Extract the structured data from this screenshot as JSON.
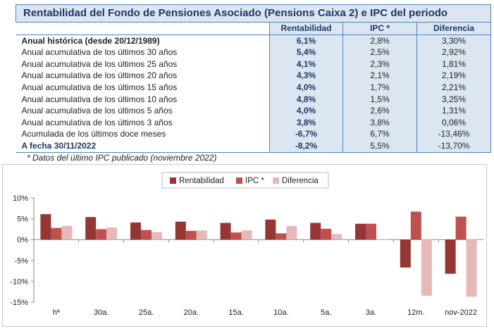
{
  "table": {
    "title": "Rentabilidad del Fondo de Pensiones Asociado (Pensions Caixa 2) e IPC del periodo",
    "columns": [
      "Rentabilidad",
      "IPC *",
      "Diferencia"
    ],
    "rows": [
      {
        "label": "Anual histórica (desde 20/12/1989)",
        "rent": "6,1%",
        "ipc": "2,8%",
        "dif": "3,30%"
      },
      {
        "label": "Anual acumulativa de los últimos 30 años",
        "rent": "5,4%",
        "ipc": "2,5%",
        "dif": "2,92%"
      },
      {
        "label": "Anual acumulativa de los últimos 25 años",
        "rent": "4,1%",
        "ipc": "2,3%",
        "dif": "1,81%"
      },
      {
        "label": "Anual acumulativa de los últimos 20 años",
        "rent": "4,3%",
        "ipc": "2,1%",
        "dif": "2,19%"
      },
      {
        "label": "Anual acumulativa de los últimos 15 años",
        "rent": "4,0%",
        "ipc": "1,7%",
        "dif": "2,21%"
      },
      {
        "label": "Anual acumulativa de los últimos 10 años",
        "rent": "4,8%",
        "ipc": "1,5%",
        "dif": "3,25%"
      },
      {
        "label": "Anual acumulativa de los últimos 5 años",
        "rent": "4,0%",
        "ipc": "2,6%",
        "dif": "1,31%"
      },
      {
        "label": "Anual acumulativa de los últimos 3 años",
        "rent": "3,8%",
        "ipc": "3,8%",
        "dif": "0,06%"
      },
      {
        "label": "Acumulada de los últimos doce meses",
        "rent": "-6,7%",
        "ipc": "6,7%",
        "dif": "-13,46%"
      },
      {
        "label": "A fecha 30/11/2022",
        "rent": "-8,2%",
        "ipc": "5,5%",
        "dif": "-13,70%"
      }
    ],
    "footnote": "* Datos del último IPC publicado (noviembre 2022)"
  },
  "chart_data": {
    "type": "bar",
    "categories": [
      "hª",
      "30a.",
      "25a.",
      "20a.",
      "15a.",
      "10a.",
      "5a.",
      "3a.",
      "12m.",
      "nov-2022"
    ],
    "series": [
      {
        "name": "Rentabilidad",
        "color": "#963634",
        "values": [
          6.1,
          5.4,
          4.1,
          4.3,
          4.0,
          4.8,
          4.0,
          3.8,
          -6.7,
          -8.2
        ]
      },
      {
        "name": "IPC *",
        "color": "#c0504d",
        "values": [
          2.8,
          2.5,
          2.3,
          2.1,
          1.7,
          1.5,
          2.6,
          3.8,
          6.7,
          5.5
        ]
      },
      {
        "name": "Diferencia",
        "color": "#e6b9b8",
        "values": [
          3.3,
          2.92,
          1.81,
          2.19,
          2.21,
          3.25,
          1.31,
          0.06,
          -13.46,
          -13.7
        ]
      }
    ],
    "yticks": [
      10,
      5,
      0,
      -5,
      -10,
      -15
    ],
    "ytick_labels": [
      "10%",
      "5%",
      "0%",
      "-5%",
      "-10%",
      "-15%"
    ],
    "ylim": [
      -15,
      10
    ],
    "legend": "top-center",
    "grid": false
  }
}
